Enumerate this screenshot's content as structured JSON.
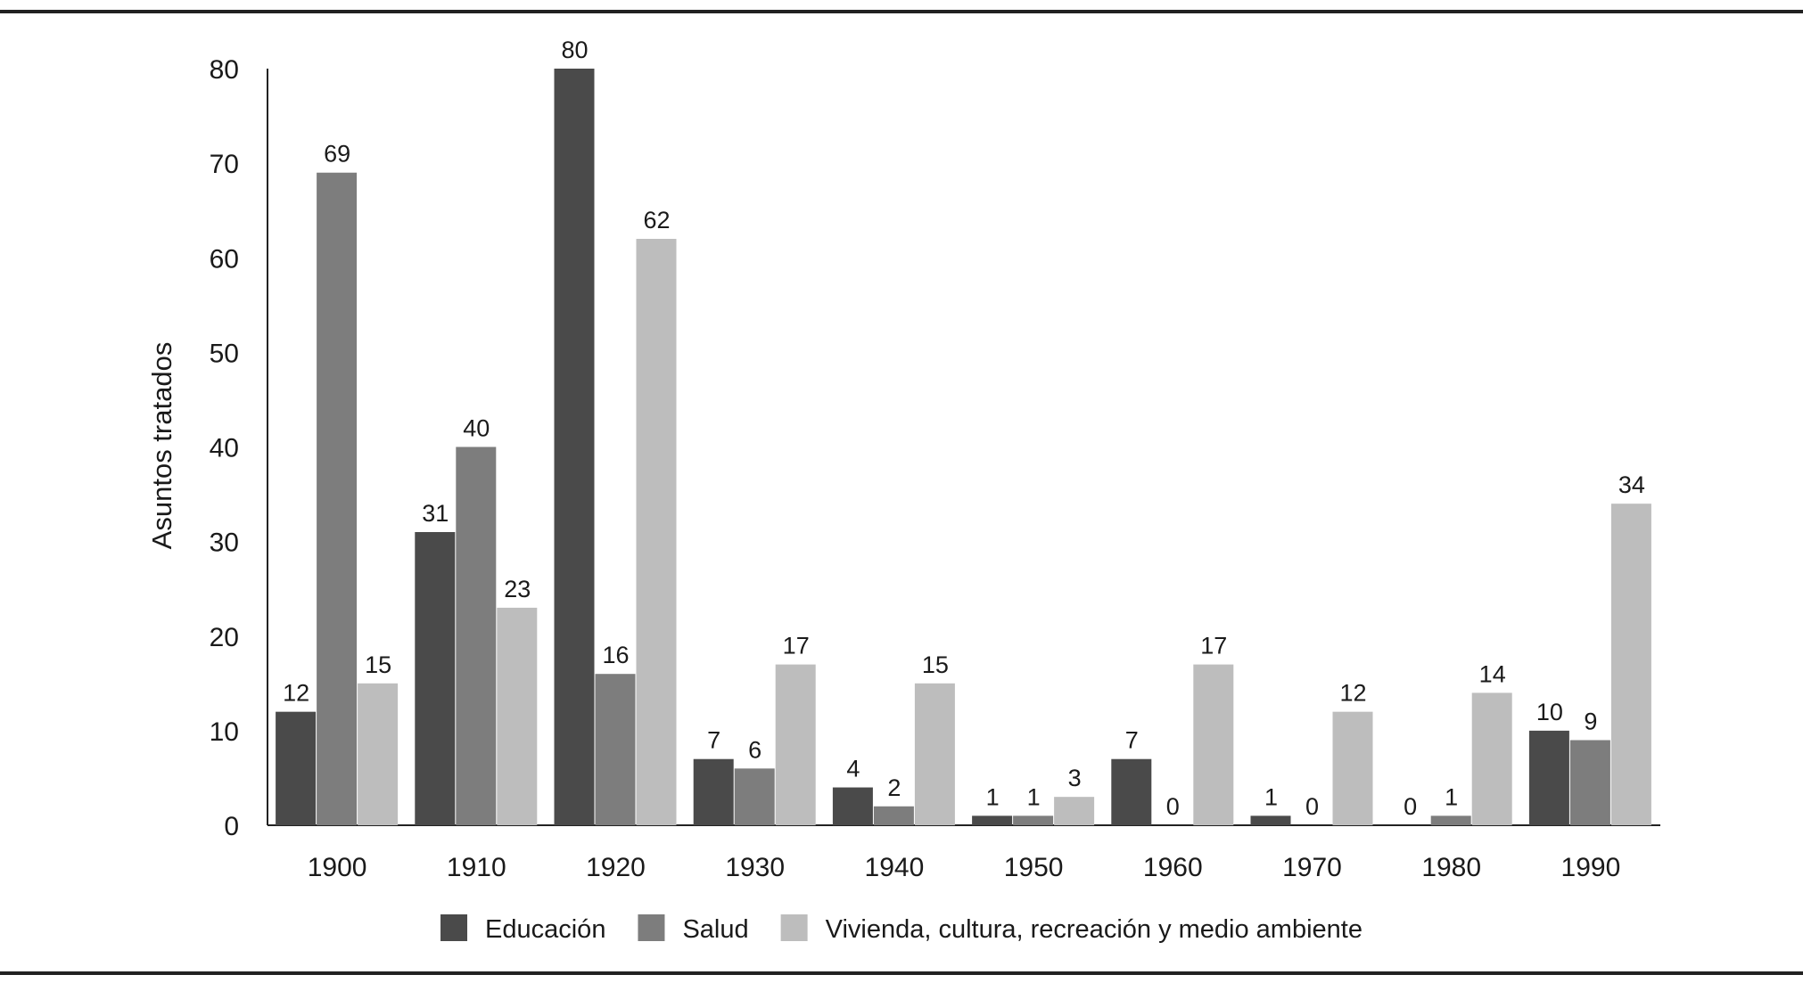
{
  "chart_data": {
    "type": "bar",
    "title": "",
    "xlabel": "",
    "ylabel": "Asuntos tratados",
    "ylim": [
      0,
      80
    ],
    "yticks": [
      0,
      10,
      20,
      30,
      40,
      50,
      60,
      70,
      80
    ],
    "categories": [
      "1900",
      "1910",
      "1920",
      "1930",
      "1940",
      "1950",
      "1960",
      "1970",
      "1980",
      "1990"
    ],
    "series": [
      {
        "name": "Educación",
        "color": "#4a4a4a",
        "values": [
          12,
          31,
          80,
          7,
          4,
          1,
          7,
          1,
          0,
          10
        ]
      },
      {
        "name": "Salud",
        "color": "#7d7d7d",
        "values": [
          69,
          40,
          16,
          6,
          2,
          1,
          0,
          0,
          1,
          9
        ]
      },
      {
        "name": "Vivienda, cultura, recreación y medio ambiente",
        "color": "#bdbdbd",
        "values": [
          15,
          23,
          62,
          17,
          15,
          3,
          17,
          12,
          14,
          34
        ]
      }
    ],
    "grid": false,
    "legend_position": "bottom"
  }
}
